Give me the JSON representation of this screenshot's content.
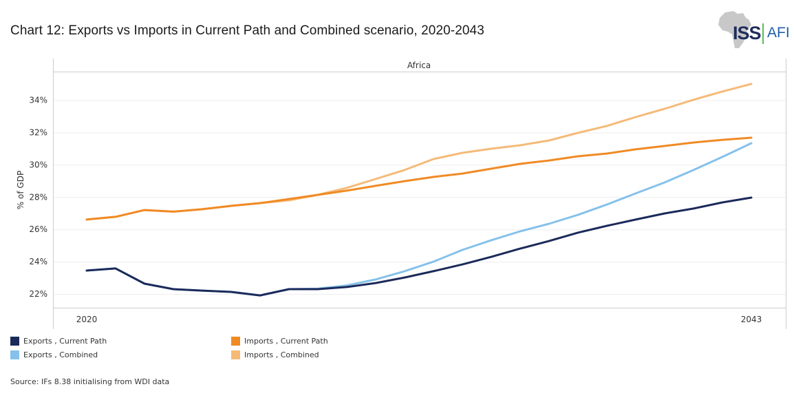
{
  "header": {
    "title": "Chart 12: Exports vs Imports in Current Path and Combined scenario, 2020-2043",
    "logo": {
      "primary": "ISS",
      "secondary": "AFI",
      "icon": "africa-map-icon"
    }
  },
  "colors": {
    "exports_current_path": "#1b2a5a",
    "exports_combined": "#85c1ea",
    "imports_current_path": "#f08a24",
    "imports_combined": "#f5ba78",
    "gridline": "#eeeeee",
    "frame": "#cccccc"
  },
  "chart_data": {
    "type": "line",
    "title": "Chart 12: Exports vs Imports in Current Path and Combined scenario, 2020-2043",
    "panel_label": "Africa",
    "xlabel": "",
    "ylabel": "% of GDP",
    "x": [
      2020,
      2021,
      2022,
      2023,
      2024,
      2025,
      2026,
      2027,
      2028,
      2029,
      2030,
      2031,
      2032,
      2033,
      2034,
      2035,
      2036,
      2037,
      2038,
      2039,
      2040,
      2041,
      2042,
      2043
    ],
    "x_tick_labels": [
      "2020",
      "2043"
    ],
    "y_ticks": [
      22,
      24,
      26,
      28,
      30,
      32,
      34
    ],
    "y_tick_labels": [
      "22%",
      "24%",
      "26%",
      "28%",
      "30%",
      "32%",
      "34%"
    ],
    "ylim": [
      21.15,
      36.5
    ],
    "grid": true,
    "legend_position": "bottom",
    "series": [
      {
        "name": "Exports , Current Path",
        "color_key": "exports_current_path",
        "values": [
          23.45,
          23.58,
          22.64,
          22.3,
          22.21,
          22.13,
          21.91,
          22.3,
          22.3,
          22.43,
          22.68,
          23.02,
          23.41,
          23.83,
          24.3,
          24.81,
          25.28,
          25.8,
          26.22,
          26.61,
          26.99,
          27.29,
          27.67,
          27.97
        ]
      },
      {
        "name": "Exports , Combined",
        "color_key": "exports_combined",
        "values": [
          23.45,
          23.58,
          22.64,
          22.3,
          22.21,
          22.13,
          21.91,
          22.3,
          22.33,
          22.53,
          22.9,
          23.41,
          24.0,
          24.73,
          25.33,
          25.88,
          26.35,
          26.9,
          27.54,
          28.23,
          28.91,
          29.68,
          30.49,
          31.34
        ]
      },
      {
        "name": "Imports , Current Path",
        "color_key": "imports_current_path",
        "values": [
          26.61,
          26.78,
          27.2,
          27.1,
          27.25,
          27.46,
          27.63,
          27.88,
          28.14,
          28.4,
          28.7,
          28.99,
          29.25,
          29.46,
          29.76,
          30.06,
          30.27,
          30.53,
          30.7,
          30.96,
          31.17,
          31.38,
          31.55,
          31.68
        ]
      },
      {
        "name": "Imports , Combined",
        "color_key": "imports_combined",
        "values": [
          26.61,
          26.78,
          27.2,
          27.1,
          27.25,
          27.46,
          27.63,
          27.8,
          28.14,
          28.57,
          29.12,
          29.68,
          30.36,
          30.74,
          31.0,
          31.21,
          31.51,
          31.98,
          32.41,
          32.96,
          33.47,
          34.03,
          34.54,
          35.01
        ]
      }
    ]
  },
  "legend": [
    {
      "label": "Exports , Current Path",
      "color_key": "exports_current_path"
    },
    {
      "label": "Imports , Current Path",
      "color_key": "imports_current_path"
    },
    {
      "label": "Exports , Combined",
      "color_key": "exports_combined"
    },
    {
      "label": "Imports , Combined",
      "color_key": "imports_combined"
    }
  ],
  "source": "Source: IFs 8.38 initialising from WDI data"
}
